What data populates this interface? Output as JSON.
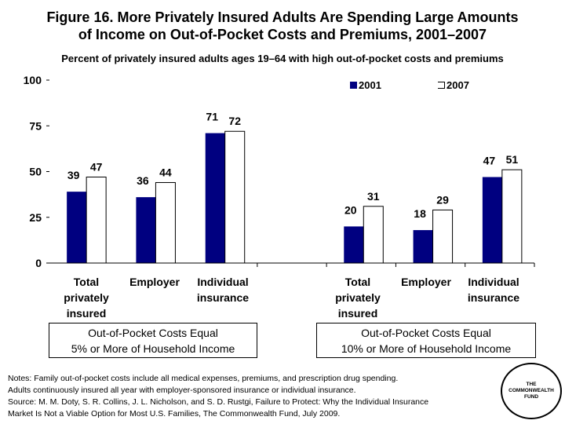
{
  "title": "Figure 16. More Privately Insured Adults Are Spending Large Amounts\nof Income on Out-of-Pocket Costs and Premiums, 2001–2007",
  "subtitle": "Percent of privately insured adults ages 19–64 with high out-of-pocket costs and premiums",
  "chart_data": {
    "type": "bar",
    "categories": [
      "Total\nprivately\ninsured",
      "Employer",
      "Individual\ninsurance",
      "",
      "Total\nprivately\ninsured",
      "Employer",
      "Individual\ninsurance"
    ],
    "series": [
      {
        "name": "2001",
        "color": "#000080",
        "values": [
          39,
          36,
          71,
          null,
          20,
          18,
          47
        ]
      },
      {
        "name": "2007",
        "color": "#ffffff",
        "values": [
          47,
          44,
          72,
          null,
          31,
          29,
          51
        ]
      }
    ],
    "ylim": [
      0,
      100
    ],
    "yticks": [
      0,
      25,
      50,
      75,
      100
    ],
    "legend": "top-right",
    "grid": false,
    "groups": [
      "Out-of-Pocket Costs Equal\n5% or More of Household Income",
      "Out-of-Pocket Costs Equal\n10% or More of Household Income"
    ]
  },
  "notes": "Notes: Family out-of-pocket costs include all medical expenses, premiums, and prescription drug spending.\nAdults continuously insured all year with employer-sponsored insurance or individual insurance.\nSource: M. M. Doty, S. R. Collins, J. L. Nicholson, and S. D. Rustgi, Failure to Protect: Why the Individual Insurance\nMarket Is Not a Viable Option for Most U.S. Families, The Commonwealth Fund, July 2009.",
  "logo_text": "THE\nCOMMONWEALTH\nFUND"
}
